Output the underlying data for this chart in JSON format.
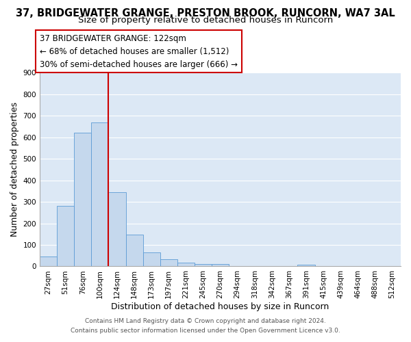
{
  "title": "37, BRIDGEWATER GRANGE, PRESTON BROOK, RUNCORN, WA7 3AL",
  "subtitle": "Size of property relative to detached houses in Runcorn",
  "xlabel": "Distribution of detached houses by size in Runcorn",
  "ylabel": "Number of detached properties",
  "bar_color": "#c5d8ed",
  "bar_edge_color": "#5b9bd5",
  "plot_bg_color": "#dce8f5",
  "fig_bg_color": "#ffffff",
  "grid_color": "#ffffff",
  "categories": [
    "27sqm",
    "51sqm",
    "76sqm",
    "100sqm",
    "124sqm",
    "148sqm",
    "173sqm",
    "197sqm",
    "221sqm",
    "245sqm",
    "270sqm",
    "294sqm",
    "318sqm",
    "342sqm",
    "367sqm",
    "391sqm",
    "415sqm",
    "439sqm",
    "464sqm",
    "488sqm",
    "512sqm"
  ],
  "bar_values": [
    45,
    280,
    620,
    670,
    345,
    148,
    65,
    32,
    17,
    11,
    11,
    0,
    0,
    0,
    0,
    8,
    0,
    0,
    0,
    0,
    0
  ],
  "ylim": [
    0,
    900
  ],
  "yticks": [
    0,
    100,
    200,
    300,
    400,
    500,
    600,
    700,
    800,
    900
  ],
  "vline_color": "#cc0000",
  "annotation_text": "37 BRIDGEWATER GRANGE: 122sqm\n← 68% of detached houses are smaller (1,512)\n30% of semi-detached houses are larger (666) →",
  "annotation_box_color": "#ffffff",
  "annotation_box_edge_color": "#cc0000",
  "footer_line1": "Contains HM Land Registry data © Crown copyright and database right 2024.",
  "footer_line2": "Contains public sector information licensed under the Open Government Licence v3.0.",
  "title_fontsize": 10.5,
  "subtitle_fontsize": 9.5,
  "axis_label_fontsize": 9,
  "tick_fontsize": 7.5,
  "annotation_fontsize": 8.5,
  "footer_fontsize": 6.5
}
